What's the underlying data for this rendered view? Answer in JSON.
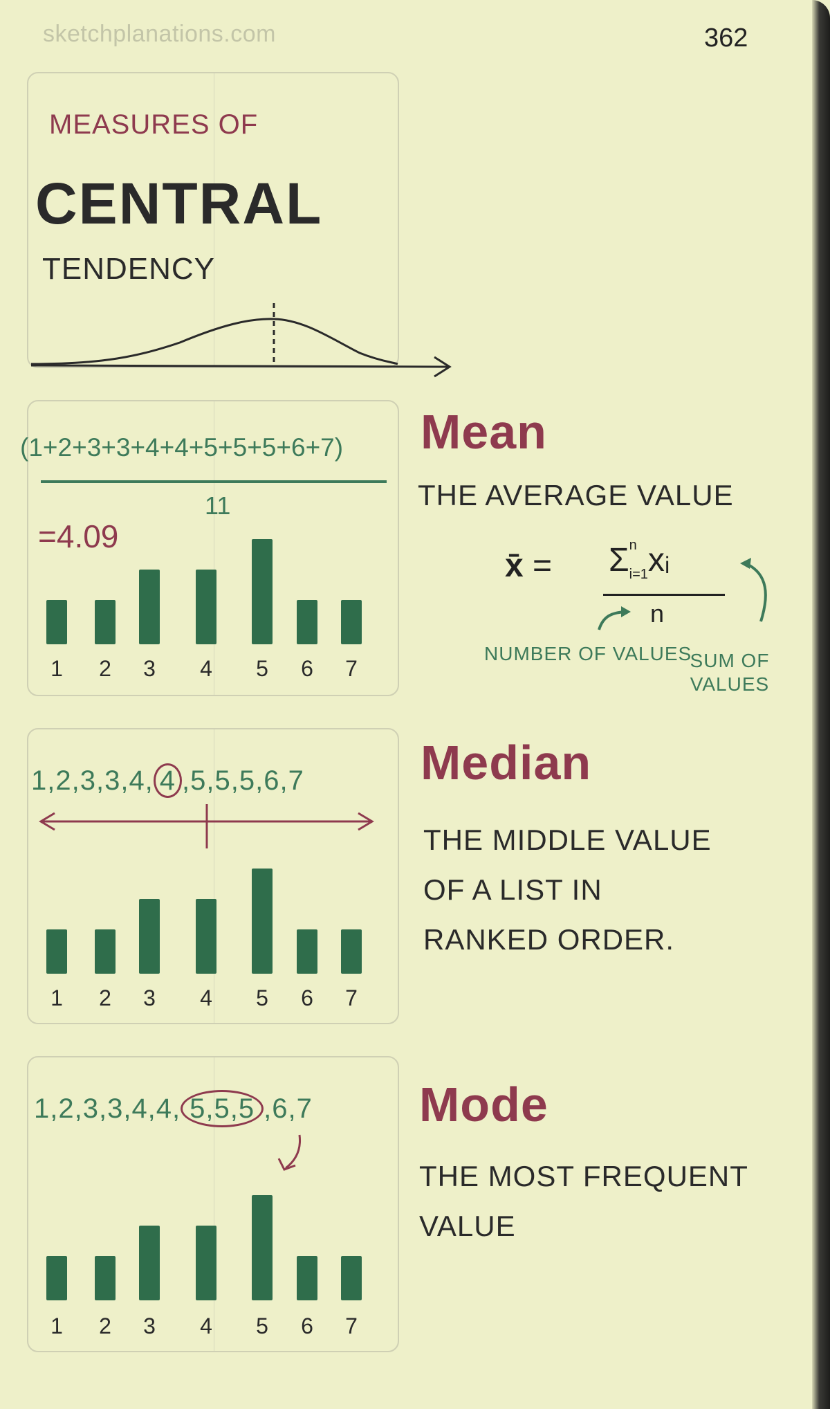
{
  "watermark": "sketchplanations.com",
  "page_number": "362",
  "intro": {
    "line1": "MEASURES OF",
    "line2": "CENTRAL",
    "line3": "TENDENCY"
  },
  "mean": {
    "title": "Mean",
    "description": "THE AVERAGE VALUE",
    "numerator": "(1+2+3+3+4+4+5+5+5+6+7)",
    "denominator": "11",
    "result": "=4.09",
    "formula": {
      "lhs": "x̄",
      "equals": "=",
      "sigma": "Σ",
      "upper": "n",
      "lower": "i=1",
      "term": "xᵢ",
      "denominator": "n"
    },
    "label_count": "NUMBER OF VALUES",
    "label_sum": "SUM OF VALUES"
  },
  "median": {
    "title": "Median",
    "description_lines": [
      "THE MIDDLE VALUE",
      "OF A LIST IN",
      "RANKED ORDER."
    ],
    "sequence_before": "1,2,3,3,4,",
    "sequence_highlight": "4",
    "sequence_after": ",5,5,5,6,7"
  },
  "mode": {
    "title": "Mode",
    "description_lines": [
      "THE MOST FREQUENT",
      "VALUE"
    ],
    "sequence_before": "1,2,3,3,4,4,",
    "sequence_highlight": "5,5,5",
    "sequence_after": ",6,7"
  },
  "colors": {
    "background": "#eef0c9",
    "heading": "#8e3a4e",
    "annotation": "#3d7a5a",
    "bar": "#2f6d4b",
    "ink": "#2a2a2a"
  },
  "chart_data": {
    "type": "bar",
    "categories": [
      "1",
      "2",
      "3",
      "4",
      "5",
      "6",
      "7"
    ],
    "values": [
      1,
      1,
      2,
      2,
      3,
      1,
      1
    ],
    "title": "",
    "xlabel": "",
    "ylabel": ""
  }
}
